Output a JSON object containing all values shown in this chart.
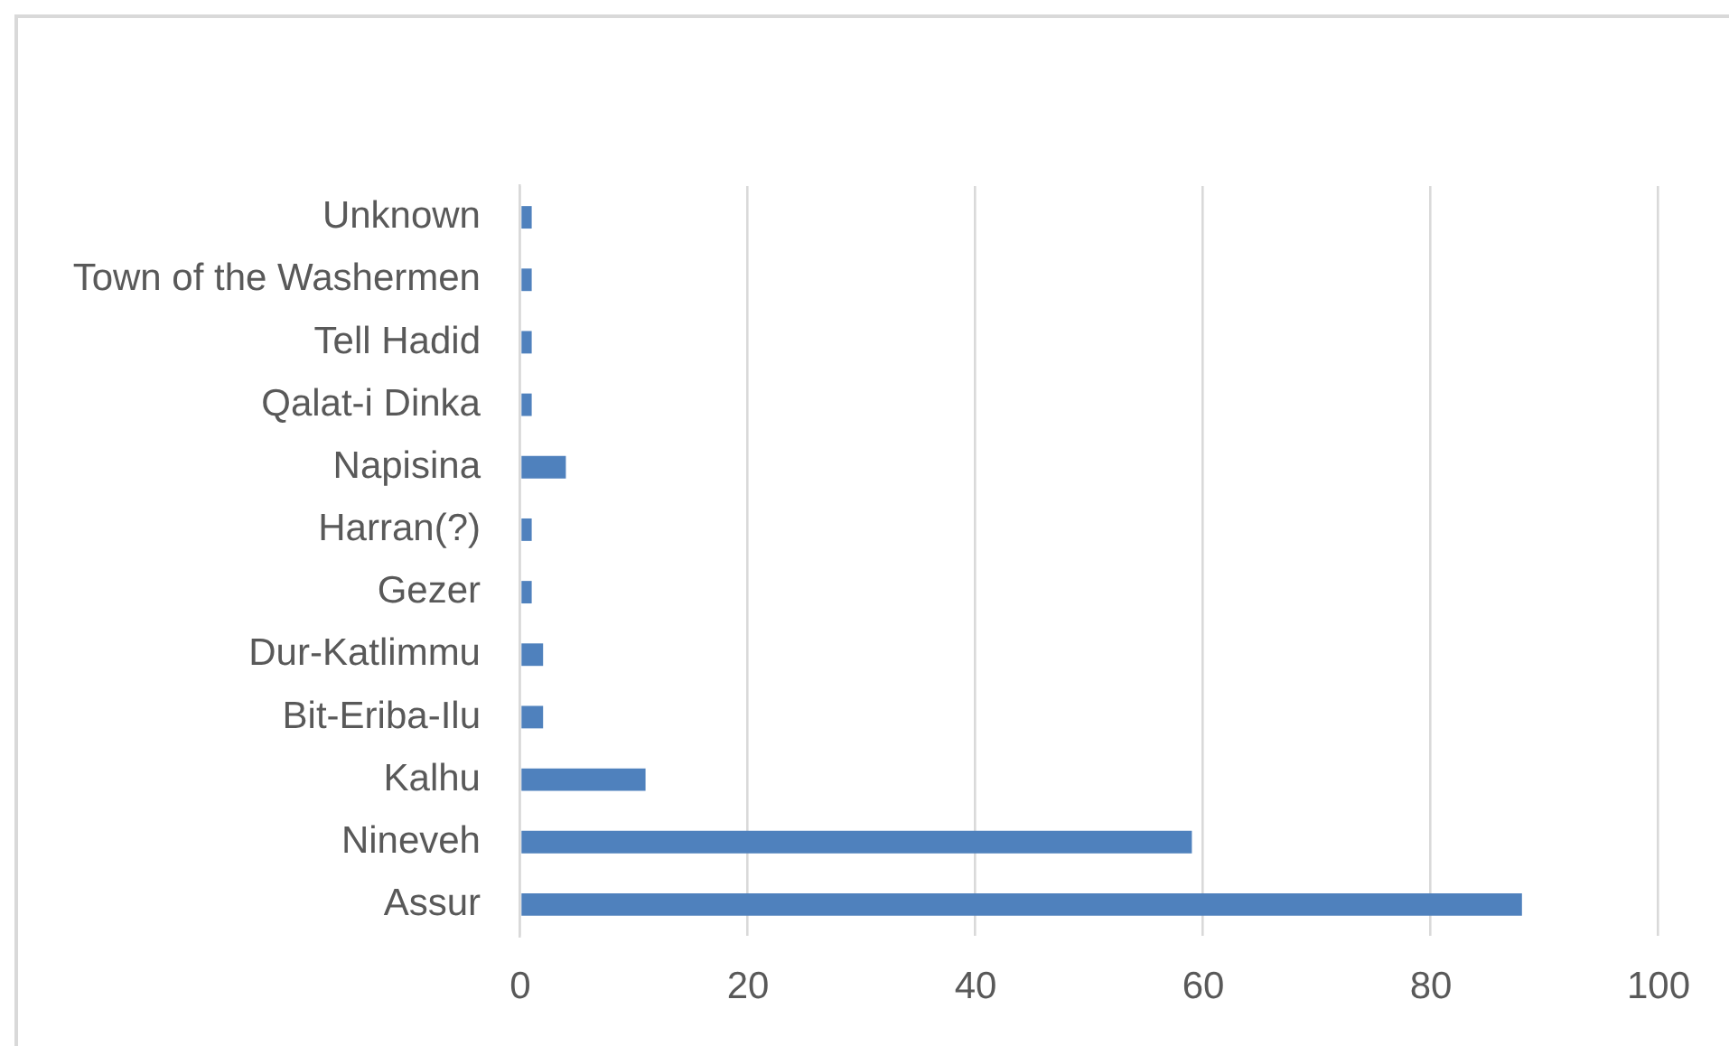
{
  "chart_data": {
    "type": "bar",
    "orientation": "horizontal",
    "categories": [
      "Unknown",
      "Town of the Washermen",
      "Tell Hadid",
      "Qalat-i Dinka",
      "Napisina",
      "Harran(?)",
      "Gezer",
      "Dur-Katlimmu",
      "Bit-Eriba-Ilu",
      "Kalhu",
      "Nineveh",
      "Assur"
    ],
    "values": [
      1,
      1,
      1,
      1,
      4,
      1,
      1,
      2,
      2,
      11,
      59,
      88
    ],
    "color": "#4f81bd",
    "xlim": [
      0,
      100
    ],
    "xticks": [
      0,
      20,
      40,
      60,
      80,
      100
    ],
    "grid": "x"
  }
}
